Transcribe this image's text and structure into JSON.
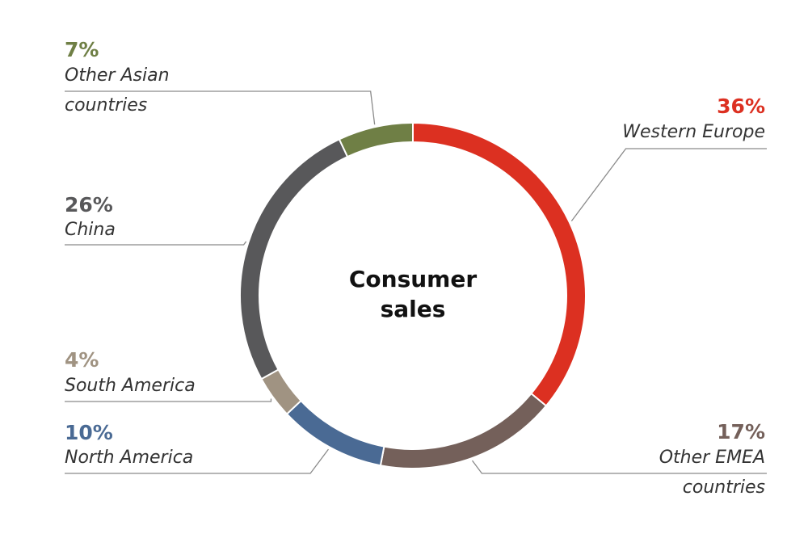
{
  "chart_data": {
    "type": "pie",
    "title": "Consumer sales",
    "title_lines": [
      "Consumer",
      "sales"
    ],
    "slices": [
      {
        "pct_label": "36%",
        "value": 36,
        "label_lines": [
          "Western Europe"
        ],
        "color": "#dc3021"
      },
      {
        "pct_label": "17%",
        "value": 17,
        "label_lines": [
          "Other EMEA",
          "countries"
        ],
        "color": "#74605a"
      },
      {
        "pct_label": "10%",
        "value": 10,
        "label_lines": [
          "North America"
        ],
        "color": "#4a6a94"
      },
      {
        "pct_label": "4%",
        "value": 4,
        "label_lines": [
          "South America"
        ],
        "color": "#a09382"
      },
      {
        "pct_label": "26%",
        "value": 26,
        "label_lines": [
          "China"
        ],
        "color": "#58585a"
      },
      {
        "pct_label": "7%",
        "value": 7,
        "label_lines": [
          "Other Asian",
          "countries"
        ],
        "color": "#6f7f45"
      }
    ]
  }
}
